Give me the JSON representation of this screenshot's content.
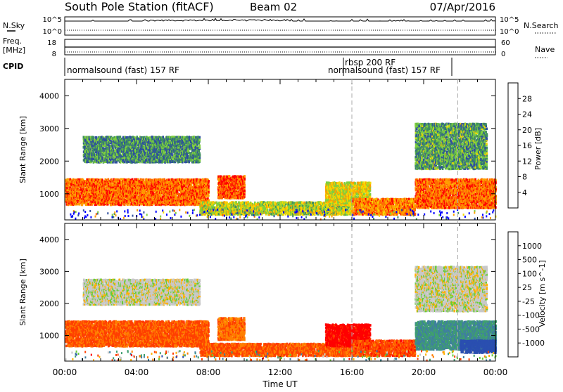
{
  "header": {
    "station": "South Pole Station (fitACF)",
    "beam": "Beam 02",
    "date": "07/Apr/2016"
  },
  "top_panels": {
    "nsky_label": "N.Sky",
    "nsky_ticks": [
      "10^5",
      "10^0"
    ],
    "nsearch_label": "N.Search",
    "nsearch_ticks": [
      "10^5",
      "10^0"
    ],
    "freq_label_line1": "Freq.",
    "freq_label_line2": "[MHz]",
    "freq_ticks": [
      "18",
      "8"
    ],
    "nave_label": "Nave",
    "nave_ticks": [
      "60",
      "0"
    ],
    "cpid_label": "CPID",
    "cpid_segments": [
      {
        "text": "normalsound (fast) 157 RF"
      },
      {
        "text": "rbsp 200 RF"
      },
      {
        "text": "normalsound (fast) 157 RF"
      }
    ]
  },
  "chart_data": [
    {
      "type": "heatmap",
      "name": "power",
      "ylabel": "Slant Range [km]",
      "yticks": [
        "1000",
        "2000",
        "3000",
        "4000"
      ],
      "ylim": [
        200,
        4500
      ],
      "xlim_hours": [
        0,
        24
      ],
      "colorbar_label": "Power [dB]",
      "colorbar_ticks": [
        "28",
        "24",
        "20",
        "16",
        "12",
        "8",
        "4"
      ],
      "colorbar_colors": [
        "#ff0000",
        "#ff6a00",
        "#ff9f00",
        "#f5d800",
        "#7fcf3f",
        "#3f8f5f",
        "#2f4f9f",
        "#0000ff"
      ],
      "echo_bands": [
        {
          "t0": 0.0,
          "t1": 8.0,
          "r0": 700,
          "r1": 1500,
          "level": 0.8
        },
        {
          "t0": 1.0,
          "t1": 7.5,
          "r0": 2000,
          "r1": 2800,
          "level": 0.3
        },
        {
          "t0": 8.5,
          "t1": 10.0,
          "r0": 900,
          "r1": 1600,
          "level": 0.85
        },
        {
          "t0": 7.5,
          "t1": 16.0,
          "r0": 400,
          "r1": 800,
          "level": 0.5
        },
        {
          "t0": 14.5,
          "t1": 17.0,
          "r0": 700,
          "r1": 1400,
          "level": 0.55
        },
        {
          "t0": 16.0,
          "t1": 19.5,
          "r0": 400,
          "r1": 900,
          "level": 0.75
        },
        {
          "t0": 19.5,
          "t1": 24.0,
          "r0": 600,
          "r1": 1500,
          "level": 0.8
        },
        {
          "t0": 19.5,
          "t1": 23.5,
          "r0": 1800,
          "r1": 3200,
          "level": 0.35
        }
      ]
    },
    {
      "type": "heatmap",
      "name": "velocity",
      "ylabel": "Slant Range [km]",
      "yticks": [
        "1000",
        "2000",
        "3000",
        "4000"
      ],
      "ylim": [
        200,
        4500
      ],
      "xlim_hours": [
        0,
        24
      ],
      "xticks": [
        "00:00",
        "04:00",
        "08:00",
        "12:00",
        "16:00",
        "20:00",
        "00:00"
      ],
      "xlabel": "Time UT",
      "colorbar_label": "Velocity [m s^-1]",
      "colorbar_ticks": [
        "1000",
        "500",
        "100",
        "25",
        "-25",
        "-100",
        "-500",
        "-1000"
      ],
      "colorbar_colors": [
        "#2a4fb0",
        "#3f7f9f",
        "#3f9f6f",
        "#66cc33",
        "#c8c8c8",
        "#ffb000",
        "#ff7f00",
        "#ff3f00",
        "#ff0000"
      ],
      "echo_bands": [
        {
          "t0": 0.0,
          "t1": 8.0,
          "r0": 700,
          "r1": 1500,
          "level": -0.6
        },
        {
          "t0": 1.0,
          "t1": 7.5,
          "r0": 2000,
          "r1": 2800,
          "level": 0.0
        },
        {
          "t0": 8.5,
          "t1": 10.0,
          "r0": 900,
          "r1": 1600,
          "level": -0.5
        },
        {
          "t0": 7.5,
          "t1": 16.0,
          "r0": 400,
          "r1": 800,
          "level": -0.6
        },
        {
          "t0": 14.5,
          "t1": 17.0,
          "r0": 700,
          "r1": 1400,
          "level": -0.9
        },
        {
          "t0": 16.0,
          "t1": 19.5,
          "r0": 400,
          "r1": 900,
          "level": -0.65
        },
        {
          "t0": 19.5,
          "t1": 24.0,
          "r0": 600,
          "r1": 1500,
          "level": 0.55
        },
        {
          "t0": 22.0,
          "t1": 24.0,
          "r0": 500,
          "r1": 900,
          "level": 0.95
        },
        {
          "t0": 19.5,
          "t1": 23.5,
          "r0": 1800,
          "r1": 3200,
          "level": 0.0
        }
      ]
    }
  ]
}
